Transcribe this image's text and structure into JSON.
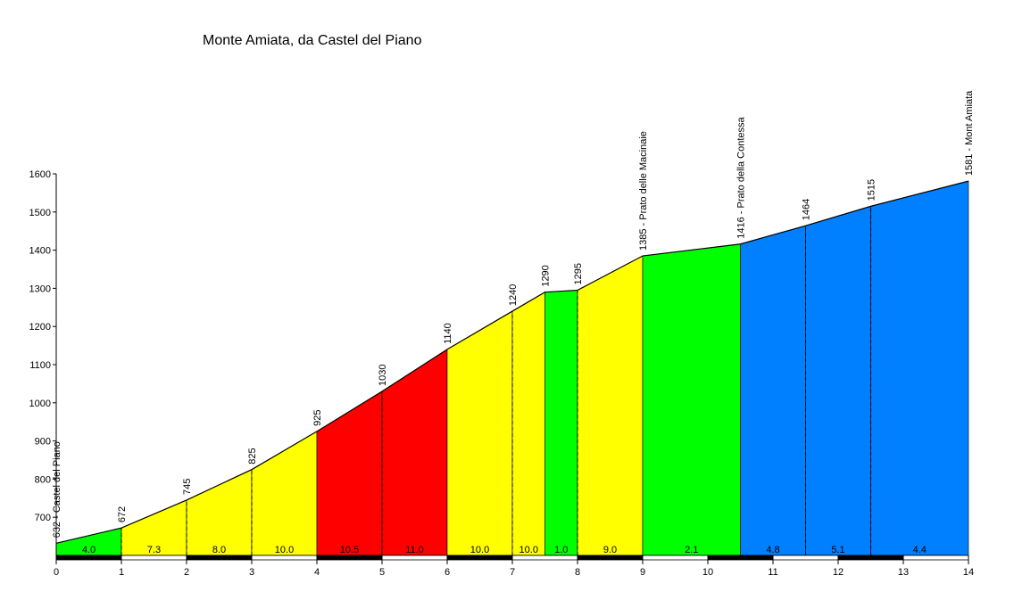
{
  "chart_data": {
    "type": "area",
    "title": "Monte Amiata, da Castel del Piano",
    "xlabel": "",
    "ylabel": "",
    "xlim": [
      0,
      14
    ],
    "ylim": [
      600,
      1600
    ],
    "x_ticks": [
      "0",
      "1",
      "2",
      "3",
      "4",
      "5",
      "6",
      "7",
      "8",
      "9",
      "10",
      "11",
      "12",
      "13",
      "14"
    ],
    "y_ticks": [
      "700",
      "800",
      "900",
      "1000",
      "1100",
      "1200",
      "1300",
      "1400",
      "1500",
      "1600"
    ],
    "profile": [
      {
        "x": 0,
        "y": 632
      },
      {
        "x": 1,
        "y": 672
      },
      {
        "x": 2,
        "y": 745
      },
      {
        "x": 3,
        "y": 825
      },
      {
        "x": 4,
        "y": 925
      },
      {
        "x": 5,
        "y": 1030
      },
      {
        "x": 6,
        "y": 1140
      },
      {
        "x": 7,
        "y": 1240
      },
      {
        "x": 7.5,
        "y": 1290
      },
      {
        "x": 8,
        "y": 1295
      },
      {
        "x": 9,
        "y": 1385
      },
      {
        "x": 10.5,
        "y": 1416
      },
      {
        "x": 11,
        "y": 1440
      },
      {
        "x": 11.5,
        "y": 1464
      },
      {
        "x": 12.5,
        "y": 1515
      },
      {
        "x": 14,
        "y": 1581
      }
    ],
    "segments": [
      {
        "x0": 0,
        "x1": 1,
        "grade": "4.0",
        "color": "#00ff00"
      },
      {
        "x0": 1,
        "x1": 2,
        "grade": "7.3",
        "color": "#ffff00"
      },
      {
        "x0": 2,
        "x1": 3,
        "grade": "8.0",
        "color": "#ffff00"
      },
      {
        "x0": 3,
        "x1": 4,
        "grade": "10.0",
        "color": "#ffff00"
      },
      {
        "x0": 4,
        "x1": 5,
        "grade": "10.5",
        "color": "#ff0000"
      },
      {
        "x0": 5,
        "x1": 6,
        "grade": "11.0",
        "color": "#ff0000"
      },
      {
        "x0": 6,
        "x1": 7,
        "grade": "10.0",
        "color": "#ffff00"
      },
      {
        "x0": 7,
        "x1": 7.5,
        "grade": "10.0",
        "color": "#ffff00"
      },
      {
        "x0": 7.5,
        "x1": 8,
        "grade": "1.0",
        "color": "#00ff00"
      },
      {
        "x0": 8,
        "x1": 9,
        "grade": "9.0",
        "color": "#ffff00"
      },
      {
        "x0": 9,
        "x1": 10.5,
        "grade": "2.1",
        "color": "#00ff00"
      },
      {
        "x0": 10.5,
        "x1": 11.5,
        "grade": "4.8",
        "color": "#0080ff"
      },
      {
        "x0": 11.5,
        "x1": 12.5,
        "grade": "5.1",
        "color": "#0080ff"
      },
      {
        "x0": 12.5,
        "x1": 14,
        "grade": "4.4",
        "color": "#0080ff"
      }
    ],
    "point_labels": [
      {
        "x": 0,
        "y": 632,
        "text": "632 - Castel del Piano"
      },
      {
        "x": 1,
        "y": 672,
        "text": "672"
      },
      {
        "x": 2,
        "y": 745,
        "text": "745"
      },
      {
        "x": 3,
        "y": 825,
        "text": "825"
      },
      {
        "x": 4,
        "y": 925,
        "text": "925"
      },
      {
        "x": 5,
        "y": 1030,
        "text": "1030"
      },
      {
        "x": 6,
        "y": 1140,
        "text": "1140"
      },
      {
        "x": 7,
        "y": 1240,
        "text": "1240"
      },
      {
        "x": 7.5,
        "y": 1290,
        "text": "1290"
      },
      {
        "x": 8,
        "y": 1295,
        "text": "1295"
      },
      {
        "x": 9,
        "y": 1385,
        "text": "1385 - Prato delle Macinaie"
      },
      {
        "x": 10.5,
        "y": 1416,
        "text": "1416 - Prato della Contessa"
      },
      {
        "x": 11.5,
        "y": 1464,
        "text": "1464"
      },
      {
        "x": 12.5,
        "y": 1515,
        "text": "1515"
      },
      {
        "x": 14,
        "y": 1581,
        "text": "1581 - Mont Amiata"
      }
    ],
    "dashed_markers": [
      1,
      2,
      3,
      5,
      7,
      8,
      11.5,
      12.5
    ],
    "grid": false,
    "legend": "none"
  }
}
